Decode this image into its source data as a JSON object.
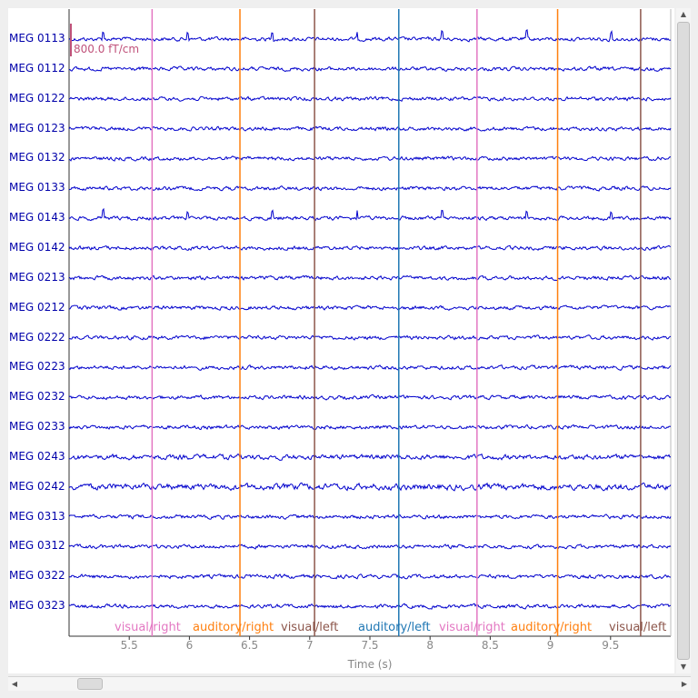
{
  "chart_data": {
    "type": "line",
    "xlabel": "Time (s)",
    "xlim": [
      5.0,
      10.0
    ],
    "x_ticks": [
      "5.5",
      "6",
      "6.5",
      "7",
      "7.5",
      "8",
      "8.5",
      "9",
      "9.5"
    ],
    "x_tick_values": [
      5.5,
      6.0,
      6.5,
      7.0,
      7.5,
      8.0,
      8.5,
      9.0,
      9.5
    ],
    "scale_bar": "800.0 fT/cm",
    "series_color": "#0000cc",
    "channels": [
      "MEG 0113",
      "MEG 0112",
      "MEG 0122",
      "MEG 0123",
      "MEG 0132",
      "MEG 0133",
      "MEG 0143",
      "MEG 0142",
      "MEG 0213",
      "MEG 0212",
      "MEG 0222",
      "MEG 0223",
      "MEG 0232",
      "MEG 0233",
      "MEG 0243",
      "MEG 0242",
      "MEG 0313",
      "MEG 0312",
      "MEG 0322",
      "MEG 0323"
    ],
    "events": [
      {
        "label": "visual/right",
        "time": 5.69,
        "color": "#e377c2"
      },
      {
        "label": "auditory/right",
        "time": 6.42,
        "color": "#ff7f0e"
      },
      {
        "label": "visual/left",
        "time": 7.04,
        "color": "#8c564b"
      },
      {
        "label": "auditory/left",
        "time": 7.74,
        "color": "#1f77b4"
      },
      {
        "label": "visual/right",
        "time": 8.39,
        "color": "#e377c2"
      },
      {
        "label": "auditory/right",
        "time": 9.06,
        "color": "#ff7f0e"
      },
      {
        "label": "visual/left",
        "time": 9.75,
        "color": "#8c564b"
      }
    ]
  }
}
